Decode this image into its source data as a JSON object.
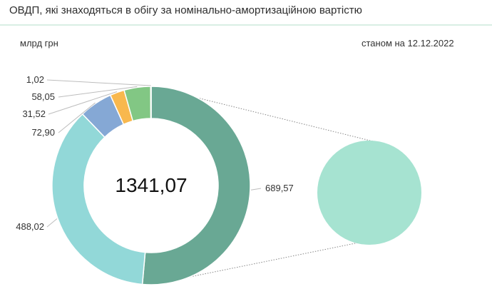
{
  "header": {
    "title": "ОВДП, які знаходяться в обігу за номінально-амортизаційною вартістю"
  },
  "unit_label": "млрд грн",
  "date_note": "станом на 12.12.2022",
  "chart_data": {
    "type": "pie",
    "total": "1341,07",
    "slices": [
      {
        "value": 689.57,
        "label": "689,57",
        "color": "#69a894"
      },
      {
        "value": 488.02,
        "label": "488,02",
        "color": "#92d8d8"
      },
      {
        "value": 72.9,
        "label": "72,90",
        "color": "#85a8d5"
      },
      {
        "value": 31.52,
        "label": "31,52",
        "color": "#f8b84e"
      },
      {
        "value": 58.05,
        "label": "58,05",
        "color": "#82c784"
      },
      {
        "value": 1.02,
        "label": "1,02",
        "color": "#e98b6f"
      }
    ],
    "detail_slice_color": "#a6e3d1"
  }
}
